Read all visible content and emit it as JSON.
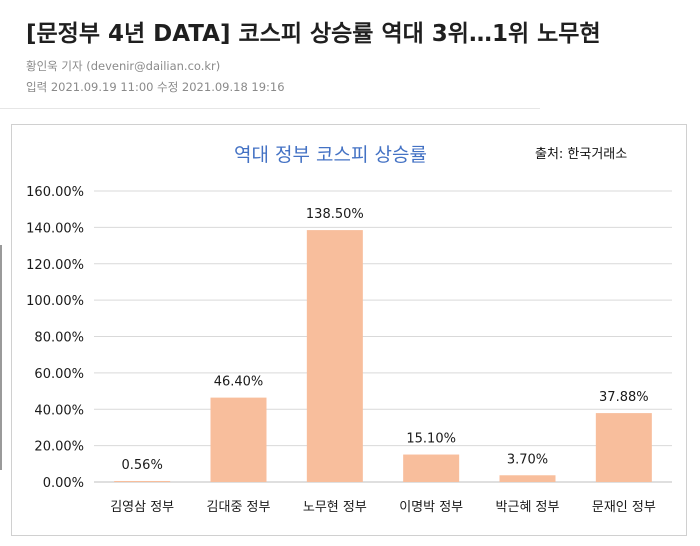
{
  "article": {
    "headline": "[문정부 4년 DATA] 코스피 상승률 역대 3위…1위 노무현",
    "byline": "황인욱 기자 (devenir@dailian.co.kr)",
    "dateline": "입력 2021.09.19 11:00 수정 2021.09.18 19:16"
  },
  "chart_data": {
    "type": "bar",
    "title": "역대 정부 코스피 상승률",
    "source": "출처: 한국거래소",
    "categories": [
      "김영삼 정부",
      "김대중 정부",
      "노무현 정부",
      "이명박 정부",
      "박근혜 정부",
      "문재인 정부"
    ],
    "values": [
      0.56,
      46.4,
      138.5,
      15.1,
      3.7,
      37.88
    ],
    "data_labels": [
      "0.56%",
      "46.40%",
      "138.50%",
      "15.10%",
      "3.70%",
      "37.88%"
    ],
    "yticks": [
      "0.00%",
      "20.00%",
      "40.00%",
      "60.00%",
      "80.00%",
      "100.00%",
      "120.00%",
      "140.00%",
      "160.00%"
    ],
    "ylim": [
      0,
      160
    ],
    "grid": true,
    "bar_color": "#f8be9c",
    "title_color": "#4472c4"
  }
}
